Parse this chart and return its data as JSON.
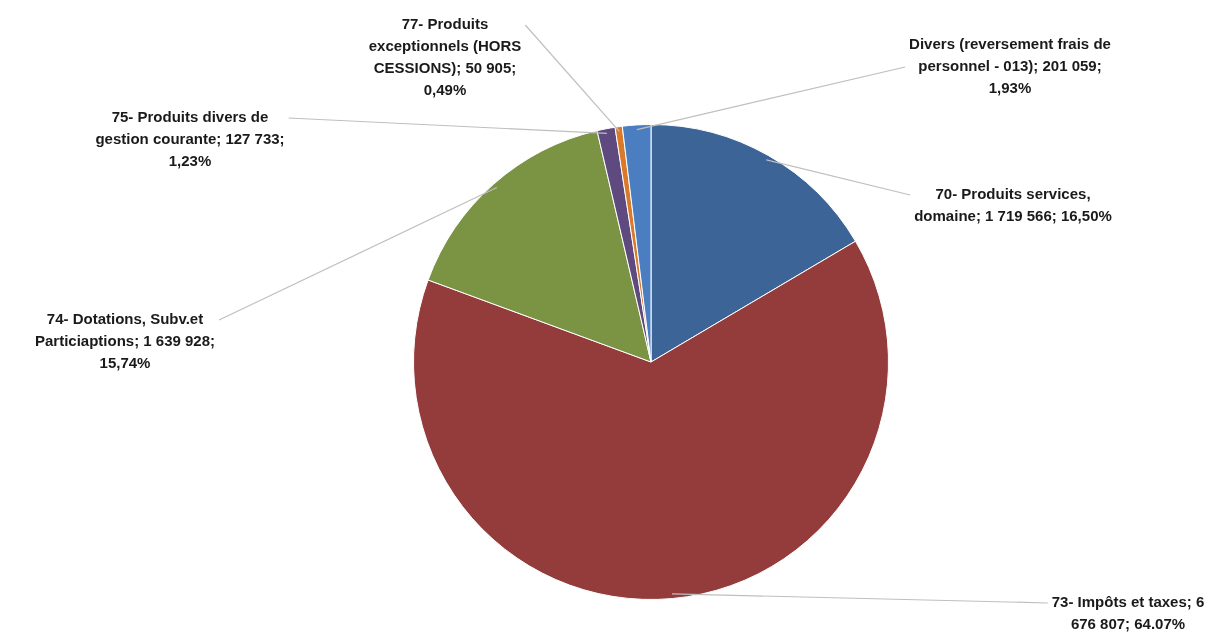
{
  "chart_data": {
    "type": "pie",
    "categories": [
      "70- Produits services, domaine",
      "73- Impôts et taxes",
      "74- Dotations, Subv.et Particiaptions",
      "75- Produits divers de gestion courante",
      "77- Produits exceptionnels (HORS CESSIONS)",
      "Divers (reversement frais de personnel - 013)"
    ],
    "values": [
      1719566,
      6676807,
      1639928,
      127733,
      50905,
      201059
    ],
    "colors": [
      "#3c6496",
      "#943c3c",
      "#7a9444",
      "#5e4a7e",
      "#d97a2a",
      "#4a7ec0"
    ],
    "value_labels": [
      "1 719 566; 16,50%",
      "6 676 807; 64.07%",
      "1 639 928; 15,74%",
      "127 733; 1,23%",
      "50 905; 0,49%",
      "201 059; 1,93%"
    ],
    "legend": false
  }
}
